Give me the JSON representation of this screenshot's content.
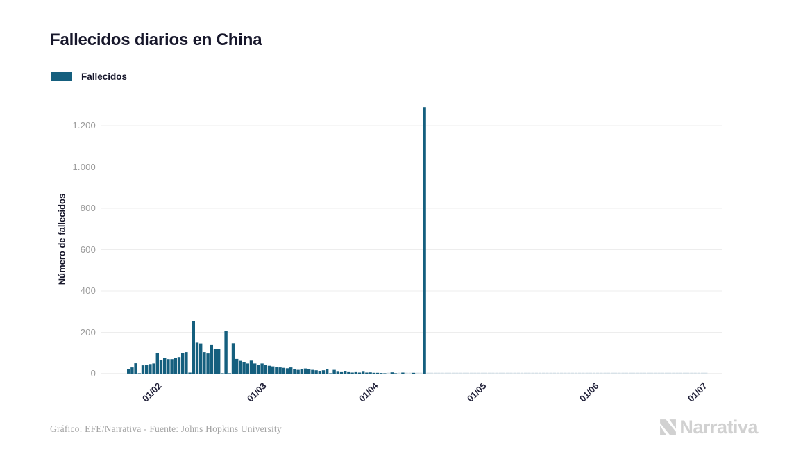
{
  "header": {
    "title": "Fallecidos diarios en China"
  },
  "legend": {
    "label": "Fallecidos",
    "color": "#155f7e"
  },
  "footer": {
    "credit": "Gráfico: EFE/Narrativa - Fuente: Johns Hopkins University"
  },
  "branding": {
    "logo_text": "Narrativa",
    "logo_icon": "narrativa-n-icon",
    "color": "#d1d1d1"
  },
  "colors": {
    "bar": "#155f7e",
    "zero_bar": "#d8e2e8",
    "gridline": "#ededed",
    "axis_line": "#e2e2e2",
    "tick_text": "#9b9b9b",
    "dark_text": "#17172b"
  },
  "chart_data": {
    "type": "bar",
    "title": "Fallecidos diarios en China",
    "xlabel": "",
    "ylabel": "Número de fallecidos",
    "series_name": "Fallecidos",
    "legend_position": "top-left",
    "grid": true,
    "ylim": [
      0,
      1320
    ],
    "yticks": [
      {
        "value": 0,
        "label": "0"
      },
      {
        "value": 200,
        "label": "200"
      },
      {
        "value": 400,
        "label": "400"
      },
      {
        "value": 600,
        "label": "600"
      },
      {
        "value": 800,
        "label": "800"
      },
      {
        "value": 1000,
        "label": "1.000"
      },
      {
        "value": 1200,
        "label": "1.200"
      }
    ],
    "xticks": [
      {
        "label": "01/02",
        "day": 6
      },
      {
        "label": "01/03",
        "day": 35
      },
      {
        "label": "01/04",
        "day": 66
      },
      {
        "label": "01/05",
        "day": 96
      },
      {
        "label": "01/06",
        "day": 127
      },
      {
        "label": "01/07",
        "day": 157
      }
    ],
    "peak_annotation": {
      "day": 82,
      "value": 1290
    },
    "values": [
      20,
      30,
      50,
      2,
      40,
      43,
      46,
      49,
      99,
      66,
      74,
      70,
      70,
      77,
      80,
      100,
      104,
      5,
      252,
      150,
      146,
      104,
      97,
      138,
      121,
      121,
      2,
      205,
      2,
      147,
      71,
      62,
      54,
      49,
      63,
      49,
      41,
      49,
      41,
      38,
      35,
      32,
      30,
      28,
      26,
      30,
      21,
      18,
      21,
      25,
      21,
      18,
      16,
      11,
      16,
      23,
      2,
      18,
      9,
      7,
      11,
      7,
      5,
      7,
      5,
      9,
      5,
      6,
      4,
      4,
      3,
      2,
      1,
      6,
      2,
      1,
      5,
      1,
      1,
      4,
      1,
      0,
      1290,
      0,
      0,
      0,
      0,
      0,
      0,
      0,
      0,
      0,
      0,
      0,
      0,
      0,
      0,
      0,
      0,
      0,
      0,
      0,
      0,
      0,
      0,
      0,
      0,
      0,
      0,
      0,
      0,
      0,
      0,
      0,
      0,
      0,
      0,
      0,
      0,
      0,
      0,
      0,
      0,
      0,
      0,
      0,
      0,
      0,
      0,
      0,
      0,
      0,
      0,
      0,
      0,
      0,
      0,
      0,
      0,
      0,
      0,
      0,
      0,
      0,
      0,
      0,
      0,
      0,
      0,
      0,
      0,
      0,
      0,
      0,
      0,
      0,
      0,
      0,
      0,
      0,
      0
    ]
  }
}
